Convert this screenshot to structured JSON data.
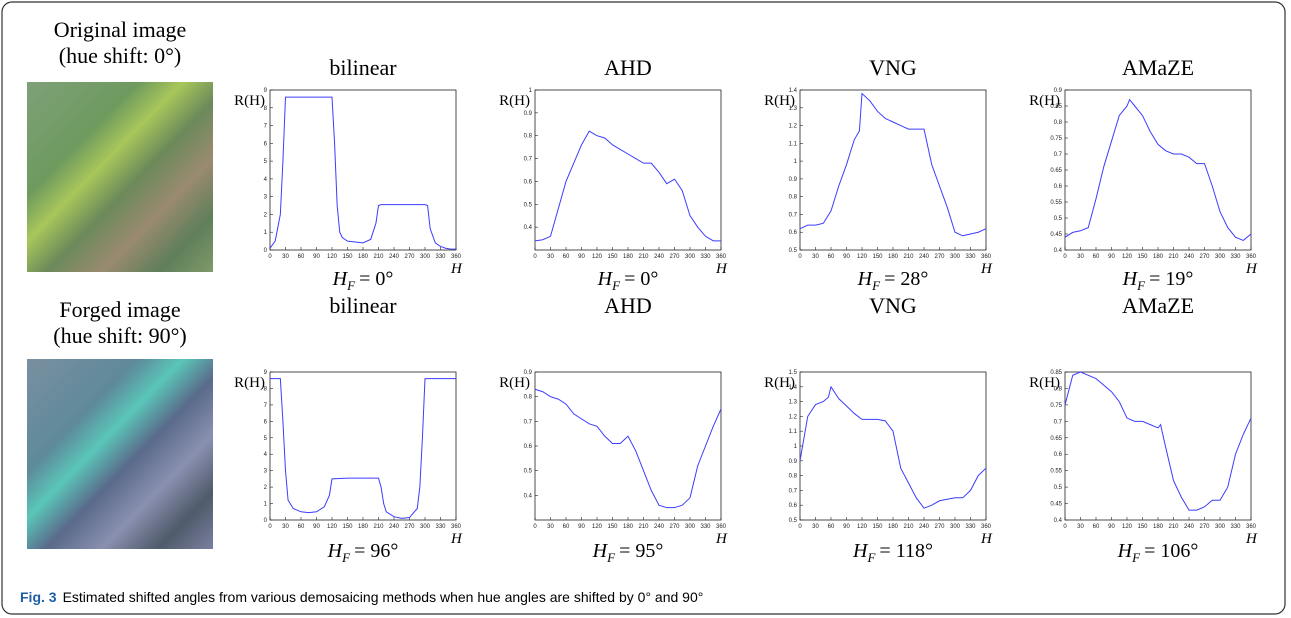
{
  "images": [
    {
      "title": "Original image",
      "subtitle": "(hue shift: 0°)"
    },
    {
      "title": "Forged image",
      "subtitle": "(hue shift: 90°)"
    }
  ],
  "caption": {
    "label": "Fig. 3",
    "text": "Estimated shifted angles from various demosaicing methods when hue angles are shifted by 0° and 90°"
  },
  "chart_data": [
    {
      "type": "line",
      "title": "bilinear",
      "y_label": "R(H)",
      "x_label": "H",
      "annotation": {
        "symbol": "H",
        "subscript": "F",
        "text": "= 0°"
      },
      "color": "#3c3cff",
      "x": [
        0,
        10,
        20,
        25,
        30,
        40,
        60,
        90,
        115,
        120,
        125,
        130,
        135,
        140,
        150,
        165,
        180,
        195,
        205,
        210,
        215,
        240,
        270,
        300,
        305,
        310,
        320,
        330,
        340,
        350,
        360
      ],
      "values": [
        0.1,
        0.5,
        2,
        5,
        8.6,
        8.6,
        8.6,
        8.6,
        8.6,
        8.6,
        6,
        2.5,
        1,
        0.7,
        0.5,
        0.45,
        0.4,
        0.6,
        1.5,
        2.5,
        2.55,
        2.55,
        2.55,
        2.55,
        2.5,
        1.2,
        0.4,
        0.2,
        0.1,
        0.05,
        0.05
      ],
      "xlim": [
        0,
        360
      ],
      "xticks": [
        0,
        30,
        60,
        90,
        120,
        150,
        180,
        210,
        240,
        270,
        300,
        330,
        360
      ],
      "ylim": [
        0,
        9
      ],
      "yticks": [
        0,
        1,
        2,
        3,
        4,
        5,
        6,
        7,
        8,
        9
      ]
    },
    {
      "type": "line",
      "title": "AHD",
      "y_label": "R(H)",
      "x_label": "H",
      "annotation": {
        "symbol": "H",
        "subscript": "F",
        "text": "= 0°"
      },
      "color": "#3c3cff",
      "x": [
        0,
        15,
        30,
        45,
        60,
        75,
        90,
        105,
        120,
        135,
        150,
        165,
        180,
        195,
        210,
        225,
        240,
        255,
        270,
        285,
        300,
        315,
        330,
        345,
        360
      ],
      "values": [
        0.34,
        0.345,
        0.36,
        0.48,
        0.6,
        0.68,
        0.76,
        0.82,
        0.8,
        0.79,
        0.76,
        0.74,
        0.72,
        0.7,
        0.68,
        0.68,
        0.64,
        0.59,
        0.61,
        0.56,
        0.45,
        0.4,
        0.36,
        0.34,
        0.34
      ],
      "xlim": [
        0,
        360
      ],
      "xticks": [
        0,
        30,
        60,
        90,
        120,
        150,
        180,
        210,
        240,
        270,
        300,
        330,
        360
      ],
      "ylim": [
        0.3,
        1
      ],
      "yticks": [
        0.4,
        0.5,
        0.6,
        0.7,
        0.8,
        0.9,
        1
      ]
    },
    {
      "type": "line",
      "title": "VNG",
      "y_label": "R(H)",
      "x_label": "H",
      "annotation": {
        "symbol": "H",
        "subscript": "F",
        "text": "= 28°"
      },
      "color": "#3c3cff",
      "x": [
        0,
        15,
        30,
        45,
        60,
        75,
        90,
        105,
        115,
        120,
        135,
        150,
        165,
        180,
        195,
        210,
        225,
        240,
        255,
        270,
        285,
        300,
        315,
        330,
        345,
        360
      ],
      "values": [
        0.62,
        0.64,
        0.64,
        0.65,
        0.72,
        0.86,
        0.98,
        1.12,
        1.17,
        1.38,
        1.34,
        1.28,
        1.24,
        1.22,
        1.2,
        1.18,
        1.18,
        1.18,
        0.98,
        0.86,
        0.74,
        0.6,
        0.58,
        0.59,
        0.6,
        0.62
      ],
      "xlim": [
        0,
        360
      ],
      "xticks": [
        0,
        30,
        60,
        90,
        120,
        150,
        180,
        210,
        240,
        270,
        300,
        330,
        360
      ],
      "ylim": [
        0.5,
        1.4
      ],
      "yticks": [
        0.5,
        0.6,
        0.7,
        0.8,
        0.9,
        1,
        1.1,
        1.2,
        1.3,
        1.4
      ]
    },
    {
      "type": "line",
      "title": "AMaZE",
      "y_label": "R(H)",
      "x_label": "H",
      "annotation": {
        "symbol": "H",
        "subscript": "F",
        "text": "= 19°"
      },
      "color": "#3c3cff",
      "x": [
        0,
        15,
        30,
        45,
        60,
        75,
        90,
        105,
        120,
        125,
        135,
        150,
        165,
        180,
        195,
        210,
        225,
        240,
        255,
        270,
        285,
        300,
        315,
        330,
        345,
        360
      ],
      "values": [
        0.44,
        0.455,
        0.46,
        0.47,
        0.56,
        0.66,
        0.74,
        0.82,
        0.85,
        0.87,
        0.85,
        0.82,
        0.77,
        0.73,
        0.71,
        0.7,
        0.7,
        0.69,
        0.67,
        0.67,
        0.6,
        0.52,
        0.47,
        0.44,
        0.43,
        0.45
      ],
      "xlim": [
        0,
        360
      ],
      "xticks": [
        0,
        30,
        60,
        90,
        120,
        150,
        180,
        210,
        240,
        270,
        300,
        330,
        360
      ],
      "ylim": [
        0.4,
        0.9
      ],
      "yticks": [
        0.4,
        0.45,
        0.5,
        0.55,
        0.6,
        0.65,
        0.7,
        0.75,
        0.8,
        0.85,
        0.9
      ]
    },
    {
      "type": "line",
      "title": "bilinear",
      "y_label": "R(H)",
      "x_label": "H",
      "annotation": {
        "symbol": "H",
        "subscript": "F",
        "text": "= 96°"
      },
      "color": "#3c3cff",
      "x": [
        0,
        15,
        20,
        25,
        30,
        35,
        45,
        60,
        75,
        90,
        105,
        115,
        120,
        150,
        180,
        210,
        215,
        220,
        225,
        240,
        255,
        270,
        285,
        290,
        295,
        300,
        330,
        360
      ],
      "values": [
        8.6,
        8.6,
        8.6,
        6,
        3,
        1.2,
        0.7,
        0.5,
        0.45,
        0.5,
        0.8,
        1.5,
        2.5,
        2.55,
        2.55,
        2.55,
        2,
        1,
        0.5,
        0.2,
        0.1,
        0.15,
        0.7,
        2,
        5,
        8.6,
        8.6,
        8.6
      ],
      "xlim": [
        0,
        360
      ],
      "xticks": [
        0,
        30,
        60,
        90,
        120,
        150,
        180,
        210,
        240,
        270,
        300,
        330,
        360
      ],
      "ylim": [
        0,
        9
      ],
      "yticks": [
        0,
        1,
        2,
        3,
        4,
        5,
        6,
        7,
        8,
        9
      ]
    },
    {
      "type": "line",
      "title": "AHD",
      "y_label": "R(H)",
      "x_label": "H",
      "annotation": {
        "symbol": "H",
        "subscript": "F",
        "text": "= 95°"
      },
      "color": "#3c3cff",
      "x": [
        0,
        15,
        30,
        45,
        60,
        75,
        90,
        105,
        120,
        135,
        150,
        165,
        180,
        195,
        210,
        225,
        240,
        255,
        270,
        285,
        300,
        315,
        330,
        345,
        360
      ],
      "values": [
        0.83,
        0.82,
        0.8,
        0.79,
        0.77,
        0.73,
        0.71,
        0.69,
        0.68,
        0.64,
        0.61,
        0.61,
        0.64,
        0.58,
        0.5,
        0.42,
        0.36,
        0.35,
        0.35,
        0.36,
        0.39,
        0.52,
        0.6,
        0.68,
        0.75
      ],
      "xlim": [
        0,
        360
      ],
      "xticks": [
        0,
        30,
        60,
        90,
        120,
        150,
        180,
        210,
        240,
        270,
        300,
        330,
        360
      ],
      "ylim": [
        0.3,
        0.9
      ],
      "yticks": [
        0.4,
        0.5,
        0.6,
        0.7,
        0.8,
        0.9
      ]
    },
    {
      "type": "line",
      "title": "VNG",
      "y_label": "R(H)",
      "x_label": "H",
      "annotation": {
        "symbol": "H",
        "subscript": "F",
        "text": "= 118°"
      },
      "color": "#3c3cff",
      "x": [
        0,
        15,
        30,
        45,
        55,
        60,
        75,
        90,
        105,
        120,
        135,
        150,
        165,
        180,
        195,
        210,
        225,
        240,
        255,
        270,
        285,
        300,
        315,
        330,
        345,
        360
      ],
      "values": [
        0.9,
        1.2,
        1.28,
        1.3,
        1.33,
        1.4,
        1.32,
        1.27,
        1.22,
        1.18,
        1.18,
        1.18,
        1.17,
        1.1,
        0.85,
        0.75,
        0.65,
        0.58,
        0.6,
        0.63,
        0.64,
        0.65,
        0.65,
        0.7,
        0.8,
        0.85
      ],
      "xlim": [
        0,
        360
      ],
      "xticks": [
        0,
        30,
        60,
        90,
        120,
        150,
        180,
        210,
        240,
        270,
        300,
        330,
        360
      ],
      "ylim": [
        0.5,
        1.5
      ],
      "yticks": [
        0.5,
        0.6,
        0.7,
        0.8,
        0.9,
        1,
        1.1,
        1.2,
        1.3,
        1.4,
        1.5
      ]
    },
    {
      "type": "line",
      "title": "AMaZE",
      "y_label": "R(H)",
      "x_label": "H",
      "annotation": {
        "symbol": "H",
        "subscript": "F",
        "text": "= 106°"
      },
      "color": "#3c3cff",
      "x": [
        0,
        15,
        30,
        45,
        60,
        75,
        90,
        105,
        120,
        135,
        150,
        165,
        180,
        185,
        195,
        210,
        225,
        240,
        255,
        270,
        285,
        300,
        315,
        330,
        345,
        360
      ],
      "values": [
        0.75,
        0.84,
        0.85,
        0.84,
        0.83,
        0.81,
        0.79,
        0.76,
        0.71,
        0.7,
        0.7,
        0.69,
        0.68,
        0.69,
        0.62,
        0.52,
        0.47,
        0.43,
        0.43,
        0.44,
        0.46,
        0.46,
        0.5,
        0.6,
        0.66,
        0.71
      ],
      "xlim": [
        0,
        360
      ],
      "xticks": [
        0,
        30,
        60,
        90,
        120,
        150,
        180,
        210,
        240,
        270,
        300,
        330,
        360
      ],
      "ylim": [
        0.4,
        0.85
      ],
      "yticks": [
        0.4,
        0.45,
        0.5,
        0.55,
        0.6,
        0.65,
        0.7,
        0.75,
        0.8,
        0.85
      ]
    }
  ]
}
